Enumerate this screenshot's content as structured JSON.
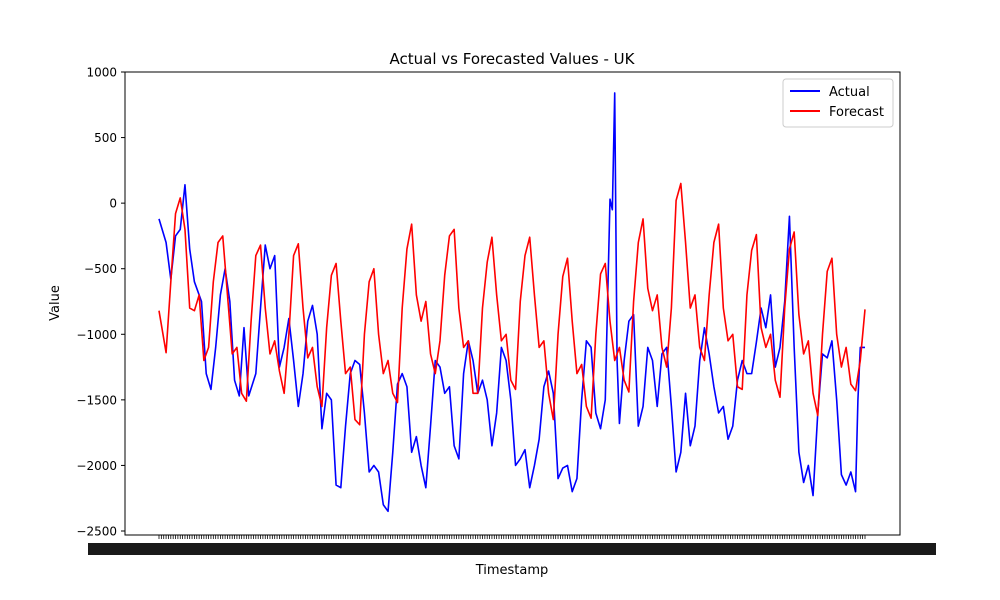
{
  "chart_data": {
    "type": "line",
    "title": "Actual vs Forecasted Values - UK",
    "xlabel": "Timestamp",
    "ylabel": "Value",
    "ylim": [
      -2530,
      1000
    ],
    "yticks": [
      1000,
      500,
      0,
      -500,
      -1000,
      -1500,
      -2000,
      -2500
    ],
    "ytick_labels": [
      "1000",
      "500",
      "0",
      "−500",
      "−1000",
      "−1500",
      "−2000",
      "−2500"
    ],
    "legend_position": "upper-right",
    "n_points": 300,
    "series": [
      {
        "name": "Actual",
        "color": "#0000ff",
        "anchors": [
          [
            0,
            -120
          ],
          [
            3,
            -300
          ],
          [
            5,
            -580
          ],
          [
            7,
            -250
          ],
          [
            9,
            -200
          ],
          [
            11,
            140
          ],
          [
            13,
            -350
          ],
          [
            15,
            -600
          ],
          [
            18,
            -750
          ],
          [
            20,
            -1300
          ],
          [
            22,
            -1420
          ],
          [
            24,
            -1100
          ],
          [
            26,
            -700
          ],
          [
            28,
            -500
          ],
          [
            30,
            -750
          ],
          [
            32,
            -1350
          ],
          [
            34,
            -1470
          ],
          [
            36,
            -950
          ],
          [
            38,
            -1470
          ],
          [
            41,
            -1300
          ],
          [
            43,
            -800
          ],
          [
            45,
            -320
          ],
          [
            47,
            -500
          ],
          [
            49,
            -400
          ],
          [
            51,
            -1250
          ],
          [
            53,
            -1100
          ],
          [
            55,
            -880
          ],
          [
            57,
            -1200
          ],
          [
            59,
            -1550
          ],
          [
            61,
            -1300
          ],
          [
            63,
            -900
          ],
          [
            65,
            -780
          ],
          [
            67,
            -1000
          ],
          [
            69,
            -1720
          ],
          [
            71,
            -1450
          ],
          [
            73,
            -1500
          ],
          [
            75,
            -2150
          ],
          [
            77,
            -2170
          ],
          [
            79,
            -1700
          ],
          [
            81,
            -1300
          ],
          [
            83,
            -1200
          ],
          [
            85,
            -1230
          ],
          [
            87,
            -1600
          ],
          [
            89,
            -2050
          ],
          [
            91,
            -2000
          ],
          [
            93,
            -2050
          ],
          [
            95,
            -2300
          ],
          [
            97,
            -2350
          ],
          [
            99,
            -1900
          ],
          [
            101,
            -1380
          ],
          [
            103,
            -1300
          ],
          [
            105,
            -1400
          ],
          [
            107,
            -1900
          ],
          [
            109,
            -1780
          ],
          [
            111,
            -2000
          ],
          [
            113,
            -2170
          ],
          [
            115,
            -1700
          ],
          [
            117,
            -1200
          ],
          [
            119,
            -1250
          ],
          [
            121,
            -1450
          ],
          [
            123,
            -1400
          ],
          [
            125,
            -1850
          ],
          [
            127,
            -1950
          ],
          [
            129,
            -1300
          ],
          [
            131,
            -1050
          ],
          [
            133,
            -1200
          ],
          [
            135,
            -1450
          ],
          [
            137,
            -1350
          ],
          [
            139,
            -1500
          ],
          [
            141,
            -1850
          ],
          [
            143,
            -1600
          ],
          [
            145,
            -1100
          ],
          [
            147,
            -1200
          ],
          [
            149,
            -1500
          ],
          [
            151,
            -2000
          ],
          [
            153,
            -1950
          ],
          [
            155,
            -1880
          ],
          [
            157,
            -2170
          ],
          [
            159,
            -2000
          ],
          [
            161,
            -1800
          ],
          [
            163,
            -1400
          ],
          [
            165,
            -1280
          ],
          [
            167,
            -1450
          ],
          [
            169,
            -2100
          ],
          [
            171,
            -2020
          ],
          [
            173,
            -2000
          ],
          [
            175,
            -2200
          ],
          [
            177,
            -2100
          ],
          [
            179,
            -1500
          ],
          [
            181,
            -1050
          ],
          [
            183,
            -1100
          ],
          [
            185,
            -1600
          ],
          [
            187,
            -1720
          ],
          [
            189,
            -1500
          ],
          [
            191,
            30
          ],
          [
            192,
            -50
          ],
          [
            193,
            840
          ],
          [
            194,
            -1200
          ],
          [
            195,
            -1680
          ],
          [
            197,
            -1200
          ],
          [
            199,
            -900
          ],
          [
            201,
            -850
          ],
          [
            203,
            -1700
          ],
          [
            205,
            -1550
          ],
          [
            207,
            -1100
          ],
          [
            209,
            -1200
          ],
          [
            211,
            -1550
          ],
          [
            213,
            -1150
          ],
          [
            215,
            -1100
          ],
          [
            217,
            -1550
          ],
          [
            219,
            -2050
          ],
          [
            221,
            -1900
          ],
          [
            223,
            -1450
          ],
          [
            225,
            -1850
          ],
          [
            227,
            -1700
          ],
          [
            229,
            -1200
          ],
          [
            231,
            -950
          ],
          [
            233,
            -1150
          ],
          [
            235,
            -1400
          ],
          [
            237,
            -1600
          ],
          [
            239,
            -1550
          ],
          [
            241,
            -1800
          ],
          [
            243,
            -1700
          ],
          [
            245,
            -1350
          ],
          [
            247,
            -1200
          ],
          [
            249,
            -1300
          ],
          [
            251,
            -1300
          ],
          [
            253,
            -1060
          ],
          [
            255,
            -800
          ],
          [
            257,
            -950
          ],
          [
            259,
            -700
          ],
          [
            261,
            -1250
          ],
          [
            263,
            -1100
          ],
          [
            265,
            -750
          ],
          [
            267,
            -100
          ],
          [
            269,
            -1100
          ],
          [
            271,
            -1900
          ],
          [
            273,
            -2130
          ],
          [
            275,
            -2000
          ],
          [
            277,
            -2230
          ],
          [
            279,
            -1600
          ],
          [
            281,
            -1150
          ],
          [
            283,
            -1180
          ],
          [
            285,
            -1050
          ],
          [
            287,
            -1500
          ],
          [
            289,
            -2070
          ],
          [
            291,
            -2150
          ],
          [
            293,
            -2050
          ],
          [
            295,
            -2200
          ],
          [
            296,
            -1500
          ],
          [
            297,
            -1100
          ],
          [
            299,
            -1100
          ]
        ]
      },
      {
        "name": "Forecast",
        "color": "#ff0000",
        "anchors": [
          [
            0,
            -820
          ],
          [
            3,
            -1140
          ],
          [
            5,
            -600
          ],
          [
            7,
            -80
          ],
          [
            9,
            40
          ],
          [
            11,
            -200
          ],
          [
            13,
            -800
          ],
          [
            15,
            -820
          ],
          [
            17,
            -700
          ],
          [
            19,
            -1200
          ],
          [
            21,
            -1100
          ],
          [
            23,
            -600
          ],
          [
            25,
            -300
          ],
          [
            27,
            -250
          ],
          [
            29,
            -700
          ],
          [
            31,
            -1150
          ],
          [
            33,
            -1100
          ],
          [
            35,
            -1450
          ],
          [
            37,
            -1510
          ],
          [
            39,
            -900
          ],
          [
            41,
            -400
          ],
          [
            43,
            -320
          ],
          [
            45,
            -800
          ],
          [
            47,
            -1150
          ],
          [
            49,
            -1050
          ],
          [
            51,
            -1280
          ],
          [
            53,
            -1450
          ],
          [
            55,
            -1000
          ],
          [
            57,
            -400
          ],
          [
            59,
            -310
          ],
          [
            61,
            -800
          ],
          [
            63,
            -1180
          ],
          [
            65,
            -1100
          ],
          [
            67,
            -1400
          ],
          [
            69,
            -1550
          ],
          [
            71,
            -950
          ],
          [
            73,
            -550
          ],
          [
            75,
            -460
          ],
          [
            77,
            -900
          ],
          [
            79,
            -1300
          ],
          [
            81,
            -1250
          ],
          [
            83,
            -1650
          ],
          [
            85,
            -1690
          ],
          [
            87,
            -1000
          ],
          [
            89,
            -600
          ],
          [
            91,
            -500
          ],
          [
            93,
            -1000
          ],
          [
            95,
            -1300
          ],
          [
            97,
            -1200
          ],
          [
            99,
            -1450
          ],
          [
            101,
            -1520
          ],
          [
            103,
            -800
          ],
          [
            105,
            -350
          ],
          [
            107,
            -160
          ],
          [
            109,
            -700
          ],
          [
            111,
            -900
          ],
          [
            113,
            -750
          ],
          [
            115,
            -1150
          ],
          [
            117,
            -1300
          ],
          [
            119,
            -1050
          ],
          [
            121,
            -550
          ],
          [
            123,
            -250
          ],
          [
            125,
            -200
          ],
          [
            127,
            -800
          ],
          [
            129,
            -1100
          ],
          [
            131,
            -1050
          ],
          [
            133,
            -1450
          ],
          [
            135,
            -1450
          ],
          [
            137,
            -800
          ],
          [
            139,
            -450
          ],
          [
            141,
            -260
          ],
          [
            143,
            -700
          ],
          [
            145,
            -1050
          ],
          [
            147,
            -1000
          ],
          [
            149,
            -1350
          ],
          [
            151,
            -1420
          ],
          [
            153,
            -750
          ],
          [
            155,
            -400
          ],
          [
            157,
            -260
          ],
          [
            159,
            -700
          ],
          [
            161,
            -1100
          ],
          [
            163,
            -1050
          ],
          [
            165,
            -1450
          ],
          [
            167,
            -1650
          ],
          [
            169,
            -1000
          ],
          [
            171,
            -560
          ],
          [
            173,
            -420
          ],
          [
            175,
            -900
          ],
          [
            177,
            -1300
          ],
          [
            179,
            -1230
          ],
          [
            181,
            -1550
          ],
          [
            183,
            -1640
          ],
          [
            185,
            -1000
          ],
          [
            187,
            -540
          ],
          [
            189,
            -460
          ],
          [
            191,
            -900
          ],
          [
            193,
            -1200
          ],
          [
            195,
            -1100
          ],
          [
            197,
            -1350
          ],
          [
            199,
            -1440
          ],
          [
            201,
            -750
          ],
          [
            203,
            -300
          ],
          [
            205,
            -120
          ],
          [
            207,
            -650
          ],
          [
            209,
            -820
          ],
          [
            211,
            -700
          ],
          [
            213,
            -1100
          ],
          [
            215,
            -1250
          ],
          [
            217,
            -800
          ],
          [
            219,
            20
          ],
          [
            221,
            150
          ],
          [
            223,
            -300
          ],
          [
            225,
            -800
          ],
          [
            227,
            -700
          ],
          [
            229,
            -1100
          ],
          [
            231,
            -1200
          ],
          [
            233,
            -700
          ],
          [
            235,
            -300
          ],
          [
            237,
            -160
          ],
          [
            239,
            -800
          ],
          [
            241,
            -1050
          ],
          [
            243,
            -1000
          ],
          [
            245,
            -1400
          ],
          [
            247,
            -1420
          ],
          [
            249,
            -700
          ],
          [
            251,
            -360
          ],
          [
            253,
            -240
          ],
          [
            255,
            -950
          ],
          [
            257,
            -1100
          ],
          [
            259,
            -1000
          ],
          [
            261,
            -1350
          ],
          [
            263,
            -1480
          ],
          [
            265,
            -800
          ],
          [
            267,
            -350
          ],
          [
            269,
            -220
          ],
          [
            271,
            -850
          ],
          [
            273,
            -1150
          ],
          [
            275,
            -1050
          ],
          [
            277,
            -1450
          ],
          [
            279,
            -1620
          ],
          [
            281,
            -1000
          ],
          [
            283,
            -520
          ],
          [
            285,
            -420
          ],
          [
            287,
            -1000
          ],
          [
            289,
            -1250
          ],
          [
            291,
            -1100
          ],
          [
            293,
            -1380
          ],
          [
            295,
            -1430
          ],
          [
            297,
            -1200
          ],
          [
            299,
            -810
          ]
        ]
      }
    ]
  }
}
